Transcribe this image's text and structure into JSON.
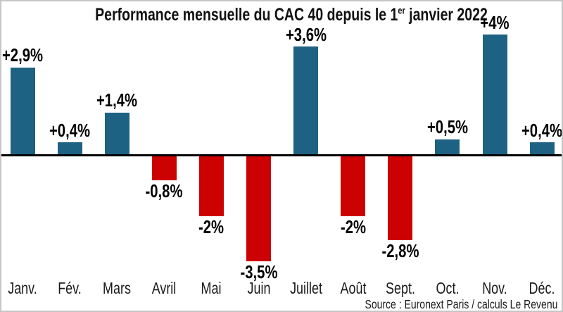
{
  "title": {
    "prefix": "Performance mensuelle du CAC 40 depuis le 1",
    "superscript": "er",
    "suffix": " janvier 2022"
  },
  "source": "Source : Euronext Paris / calculs Le Revenu",
  "chart_data": {
    "type": "bar",
    "title": "Performance mensuelle du CAC 40 depuis le 1er janvier 2022",
    "categories": [
      "Janv.",
      "Fév.",
      "Mars",
      "Avril",
      "Mai",
      "Juin",
      "Juillet",
      "Août",
      "Sept.",
      "Oct.",
      "Nov.",
      "Déc."
    ],
    "values": [
      2.9,
      0.4,
      1.4,
      -0.8,
      -2,
      -3.5,
      3.6,
      -2,
      -2.8,
      0.5,
      4,
      0.4
    ],
    "value_labels": [
      "+2,9%",
      "+0,4%",
      "+1,4%",
      "-0,8%",
      "-2%",
      "-3,5%",
      "+3,6%",
      "-2%",
      "-2,8%",
      "+0,5%",
      "+4%",
      "+0,4%"
    ],
    "xlabel": "",
    "ylabel": "",
    "ylim": [
      -4,
      4.5
    ],
    "grid": false,
    "legend": "none",
    "colors": {
      "positive": "#1d6283",
      "negative": "#cc0101",
      "axis": "#000000",
      "frame": "#c6c6c6"
    }
  }
}
